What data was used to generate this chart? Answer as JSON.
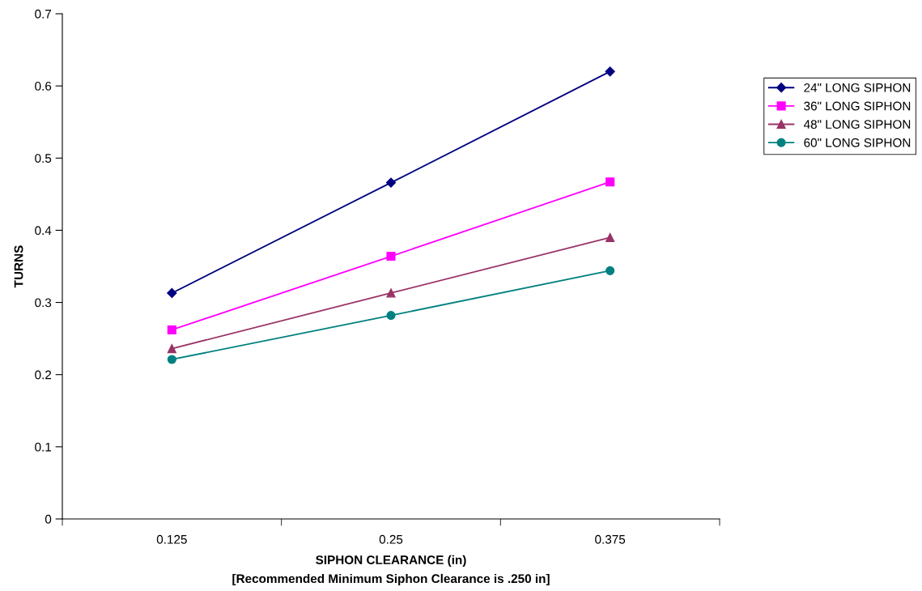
{
  "chart_data": {
    "type": "line",
    "xlabel": "SIPHON CLEARANCE (in)",
    "ylabel": "TURNS",
    "annotations": [
      "[Recommended Minimum Siphon Clearance is .250 in]"
    ],
    "categories": [
      "0.125",
      "0.25",
      "0.375"
    ],
    "series": [
      {
        "name": "24\" LONG SIPHON",
        "color": "#000080",
        "marker": "diamond",
        "values": [
          0.313,
          0.466,
          0.62
        ]
      },
      {
        "name": "36\" LONG SIPHON",
        "color": "#ff00ff",
        "marker": "square",
        "values": [
          0.262,
          0.364,
          0.467
        ]
      },
      {
        "name": "48\" LONG SIPHON",
        "color": "#993366",
        "marker": "triangle",
        "values": [
          0.236,
          0.313,
          0.39
        ]
      },
      {
        "name": "60\" LONG SIPHON",
        "color": "#008080",
        "marker": "circle",
        "values": [
          0.221,
          0.282,
          0.344
        ]
      }
    ],
    "ylim": [
      0,
      0.7
    ],
    "yticks": [
      0,
      0.1,
      0.2,
      0.3,
      0.4,
      0.5,
      0.6,
      0.7
    ],
    "grid": false,
    "legend": "right",
    "line_style": "solid"
  }
}
